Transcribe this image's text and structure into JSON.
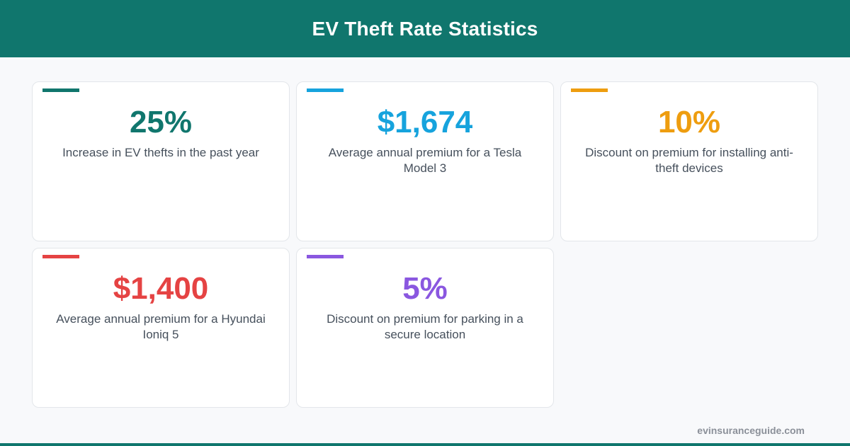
{
  "header": {
    "title": "EV Theft Rate Statistics"
  },
  "stats": [
    {
      "value": "25%",
      "description": "Increase in EV thefts in the past year",
      "color": "#10766d"
    },
    {
      "value": "$1,674",
      "description": "Average annual premium for a Tesla Model 3",
      "color": "#16a3dd"
    },
    {
      "value": "10%",
      "description": "Discount on premium for installing anti-theft devices",
      "color": "#ee9d0f"
    },
    {
      "value": "$1,400",
      "description": "Average annual premium for a Hyundai Ioniq 5",
      "color": "#e54343"
    },
    {
      "value": "5%",
      "description": "Discount on premium for parking in a secure location",
      "color": "#8a57e0"
    }
  ],
  "footer": {
    "site": "evinsuranceguide.com"
  }
}
